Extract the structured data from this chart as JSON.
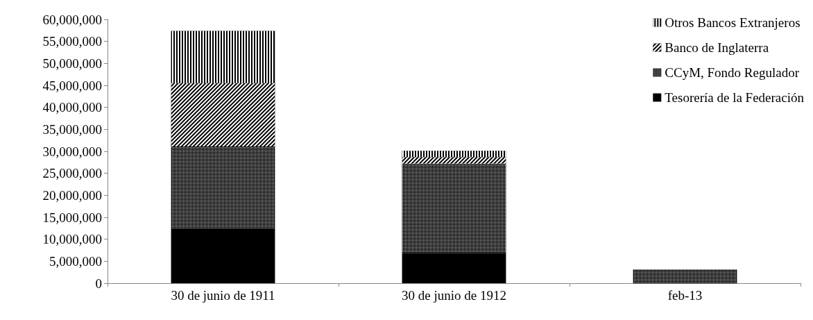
{
  "chart_data": {
    "type": "bar",
    "stacked": true,
    "categories": [
      "30 de junio de 1911",
      "30 de junio de 1912",
      "feb-13"
    ],
    "series": [
      {
        "name": "Tesorería de la Federación",
        "color": "#000000",
        "values": [
          12300000,
          6900000,
          0
        ]
      },
      {
        "name": "CCyM, Fondo Regulador",
        "color": "#000000",
        "values": [
          18800000,
          20300000,
          3100000
        ]
      },
      {
        "name": "Banco de Inglaterra",
        "color": "#000000",
        "values": [
          14400000,
          1500000,
          0
        ]
      },
      {
        "name": "Otros Bancos Extranjeros",
        "color": "#000000",
        "values": [
          11900000,
          1400000,
          0
        ]
      }
    ],
    "ylim": [
      0,
      60000000
    ],
    "yticks": [
      0,
      {
        "value": 5000000,
        "label": "5,000,000"
      },
      {
        "value": 10000000,
        "label": "10,000,000"
      },
      {
        "value": 15000000,
        "label": "15,000,000"
      },
      {
        "value": 20000000,
        "label": "20,000,000"
      },
      {
        "value": 25000000,
        "label": "25,000,000"
      },
      {
        "value": 30000000,
        "label": "30,000,000"
      },
      {
        "value": 35000000,
        "label": "35,000,000"
      },
      {
        "value": 40000000,
        "label": "40,000,000"
      },
      {
        "value": 45000000,
        "label": "45,000,000"
      },
      {
        "value": 50000000,
        "label": "50,000,000"
      },
      {
        "value": 55000000,
        "label": "55,000,000"
      },
      {
        "value": 60000000,
        "label": "60,000,000"
      }
    ],
    "grid": false,
    "legend": "top right"
  }
}
